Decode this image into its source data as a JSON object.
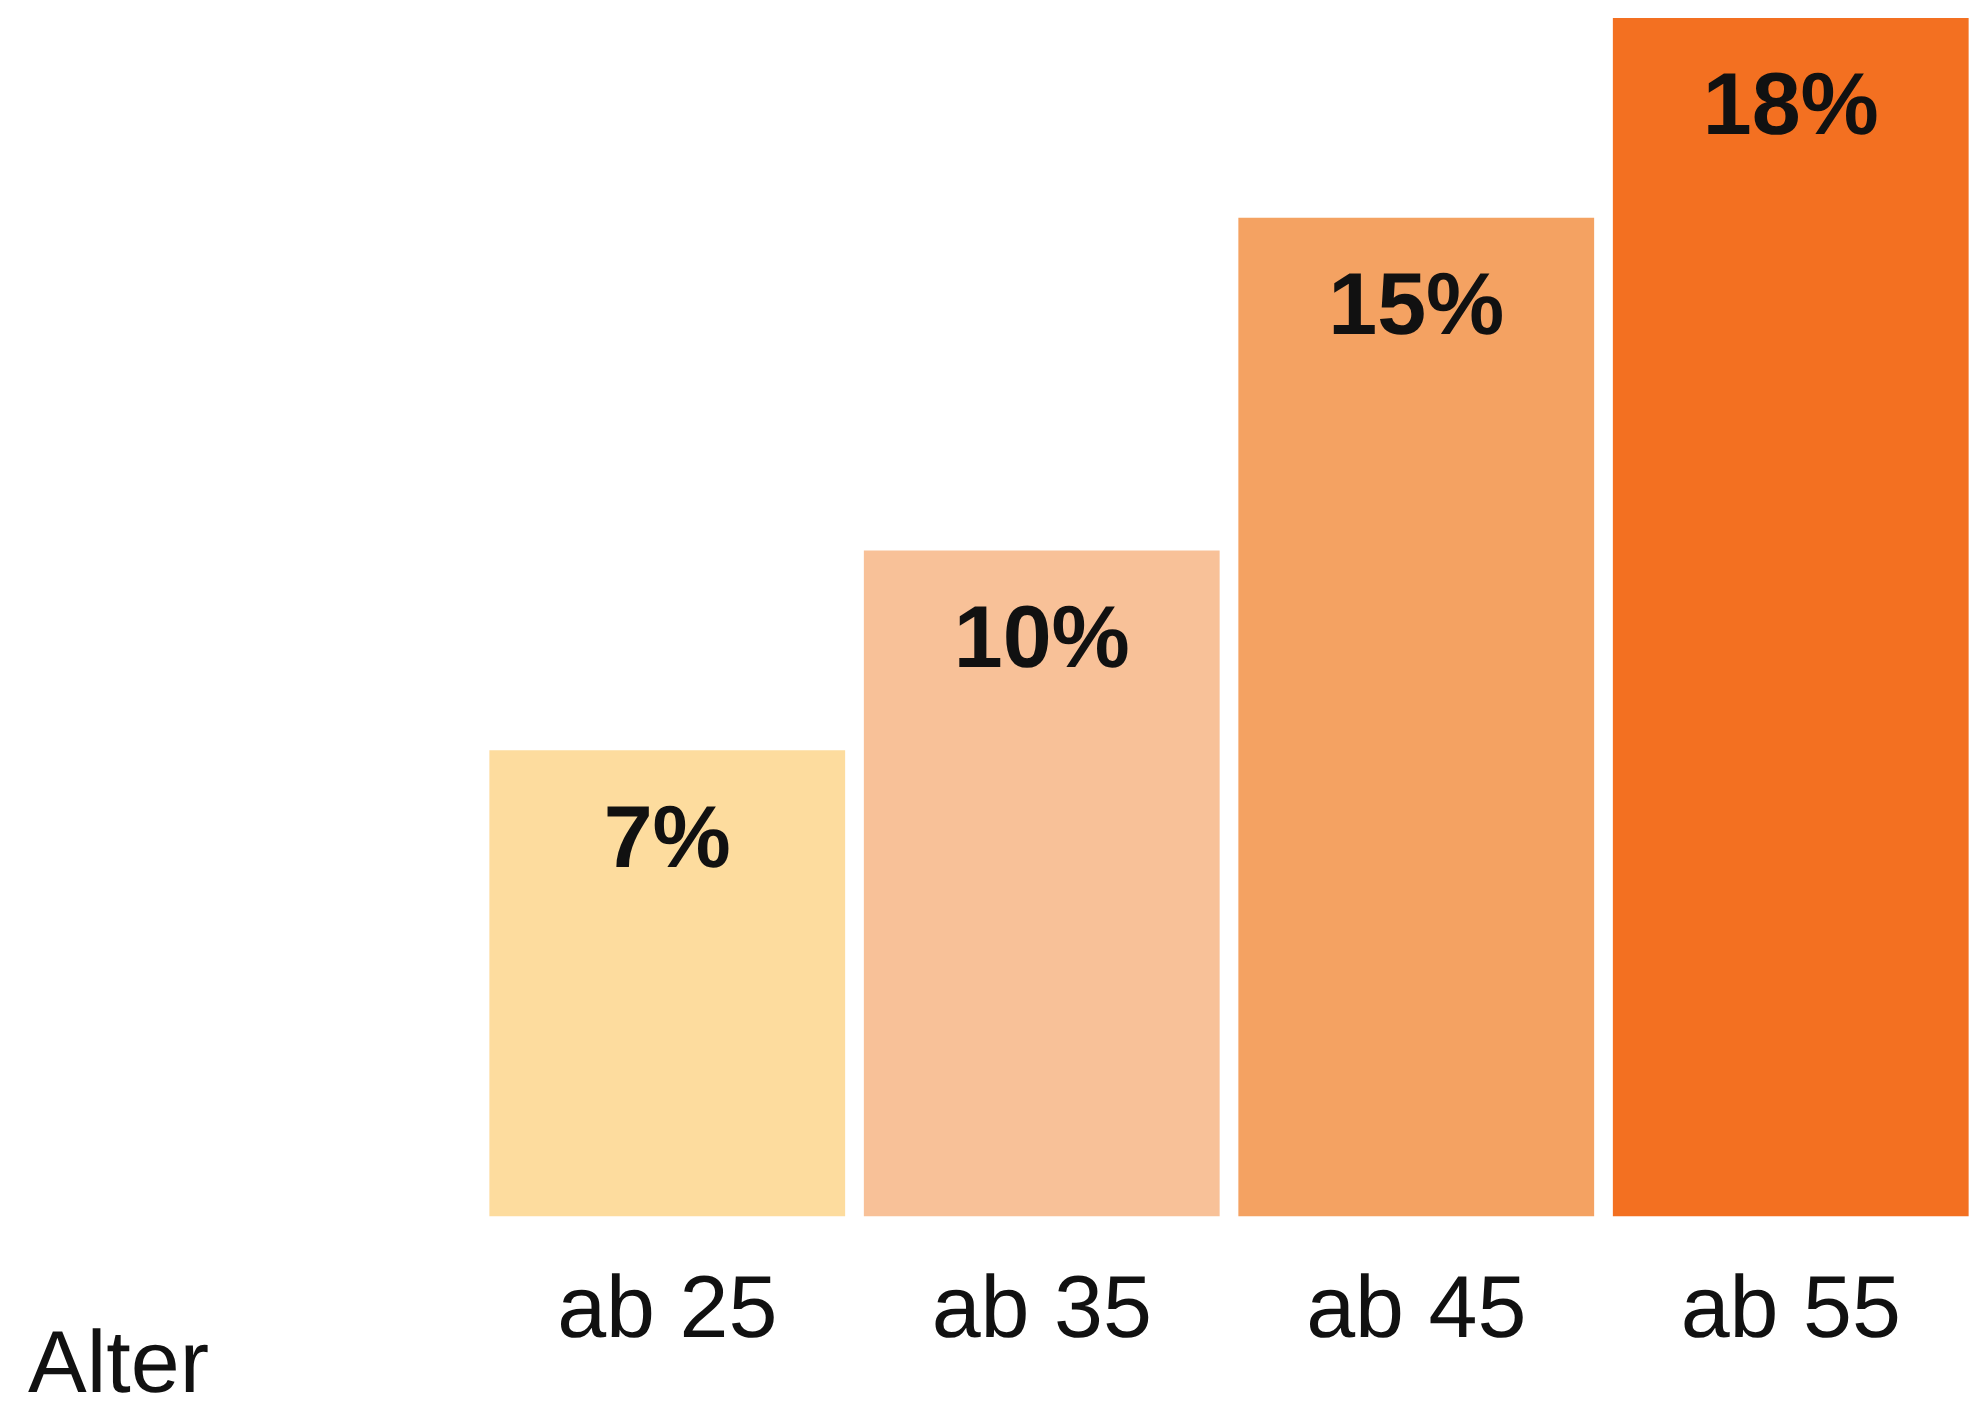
{
  "chart_data": {
    "type": "bar",
    "xlabel": "Alter",
    "categories": [
      "ab 25",
      "ab 35",
      "ab 45",
      "ab 55"
    ],
    "values": [
      7,
      10,
      15,
      18
    ],
    "colors": [
      "#fddc9e",
      "#f8c198",
      "#f4a262",
      "#f37021"
    ],
    "value_labels": [
      "7%",
      "10%",
      "15%",
      "18%"
    ]
  }
}
